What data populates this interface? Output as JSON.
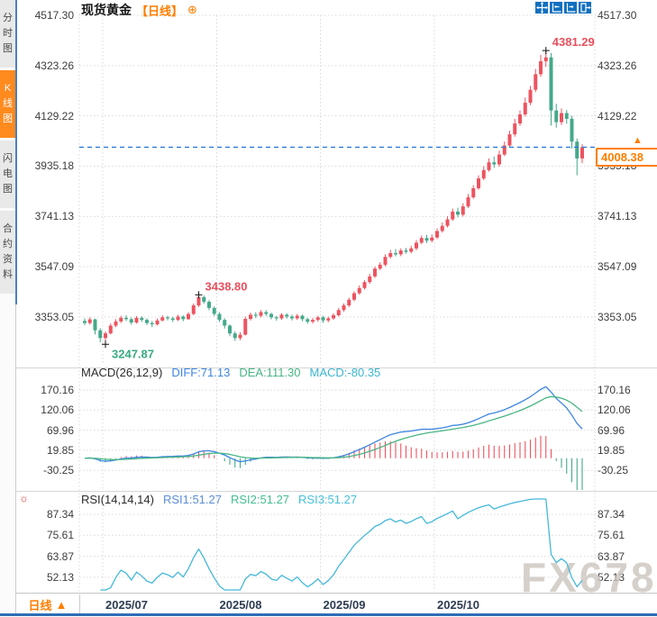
{
  "watermark": "FX678",
  "sidebar": {
    "tabs": [
      {
        "label": "分时图",
        "active": false
      },
      {
        "label": "K线图",
        "active": true
      },
      {
        "label": "闪电图",
        "active": false
      },
      {
        "label": "合约资料",
        "active": false
      }
    ]
  },
  "header": {
    "title": "现货黄金",
    "period_tag": "【日线】",
    "add_icon": "⊕"
  },
  "toolbar": {
    "icons": [
      "move-icon",
      "fit-x-axis-icon",
      "fit-y-axis-icon",
      "exit-icon"
    ]
  },
  "price_panel": {
    "axis_labels": [
      "4517.30",
      "4323.26",
      "4129.22",
      "3935.18",
      "3741.13",
      "3547.09",
      "3353.05"
    ],
    "last_price_text": "4008.38",
    "arrow": "▲"
  },
  "macd_panel": {
    "title": "MACD(26,12,9)",
    "diff_label": "DIFF:71.13",
    "dea_label": "DEA:111.30",
    "macd_label": "MACD:-80.35",
    "axis_labels": [
      "170.16",
      "120.06",
      "69.96",
      "19.85",
      "-30.25"
    ]
  },
  "rsi_panel": {
    "title": "RSI(14,14,14)",
    "rsi1_label": "RSI1:51.27",
    "rsi2_label": "RSI2:51.27",
    "rsi3_label": "RSI3:51.27",
    "settings_icon": "☼",
    "axis_labels": [
      "87.34",
      "75.61",
      "63.87",
      "52.13"
    ]
  },
  "bottom_bar": {
    "period_label": "日线",
    "arrow": "▲",
    "month_labels": [
      "2025/07",
      "2025/08",
      "2025/09",
      "2025/10"
    ]
  },
  "colors": {
    "up": "#ec5460",
    "down": "#44a98b",
    "accent_orange": "#ff7e00",
    "diff_blue": "#3e86e0",
    "dea_green": "#48b584",
    "rsi_cyan": "#45b8da",
    "dashed_line": "#2f7ed8",
    "annotation_high": "#e8505e",
    "annotation_low": "#3aa981",
    "grid": "#d9d9d9"
  },
  "chart_data": {
    "type": "candlestick",
    "title": "现货黄金 日线",
    "price_axis": {
      "ticks": [
        4517.3,
        4323.26,
        4129.22,
        3935.18,
        3741.13,
        3547.09,
        3353.05
      ]
    },
    "x_axis": {
      "month_labels": [
        "2025/07",
        "2025/08",
        "2025/09",
        "2025/10"
      ],
      "month_start_indices": [
        4,
        26,
        46,
        68
      ]
    },
    "last_price": 4008.38,
    "annotations": [
      {
        "index": 4,
        "value": 3247.87,
        "text": "3247.87",
        "kind": "low"
      },
      {
        "index": 22,
        "value": 3438.8,
        "text": "3438.80",
        "kind": "high"
      },
      {
        "index": 89,
        "value": 4381.29,
        "text": "4381.29",
        "kind": "high"
      }
    ],
    "macd": {
      "params": [
        26,
        12,
        9
      ],
      "display": {
        "diff": 71.13,
        "dea": 111.3,
        "macd": -80.35
      },
      "ticks": [
        170.16,
        120.06,
        69.96,
        19.85,
        -30.25
      ]
    },
    "rsi": {
      "params": [
        14,
        14,
        14
      ],
      "display": {
        "rsi1": 51.27,
        "rsi2": 51.27,
        "rsi3": 51.27
      },
      "ticks": [
        87.34,
        75.61,
        63.87,
        52.13
      ]
    },
    "candles": [
      [
        3338,
        3348,
        3322,
        3330
      ],
      [
        3330,
        3352,
        3324,
        3344
      ],
      [
        3344,
        3347,
        3286,
        3302
      ],
      [
        3302,
        3310,
        3256,
        3272
      ],
      [
        3272,
        3298,
        3247.87,
        3290
      ],
      [
        3290,
        3328,
        3286,
        3320
      ],
      [
        3320,
        3345,
        3314,
        3336
      ],
      [
        3336,
        3358,
        3330,
        3350
      ],
      [
        3350,
        3360,
        3338,
        3345
      ],
      [
        3345,
        3352,
        3324,
        3332
      ],
      [
        3332,
        3357,
        3328,
        3350
      ],
      [
        3350,
        3356,
        3334,
        3342
      ],
      [
        3342,
        3348,
        3322,
        3330
      ],
      [
        3330,
        3338,
        3314,
        3325
      ],
      [
        3325,
        3347,
        3320,
        3340
      ],
      [
        3340,
        3360,
        3336,
        3352
      ],
      [
        3352,
        3358,
        3340,
        3348
      ],
      [
        3348,
        3355,
        3334,
        3342
      ],
      [
        3342,
        3362,
        3338,
        3355
      ],
      [
        3355,
        3360,
        3337,
        3345
      ],
      [
        3345,
        3372,
        3342,
        3365
      ],
      [
        3365,
        3405,
        3360,
        3398
      ],
      [
        3398,
        3438.8,
        3392,
        3430
      ],
      [
        3430,
        3436,
        3404,
        3412
      ],
      [
        3412,
        3418,
        3379,
        3388
      ],
      [
        3388,
        3395,
        3357,
        3365
      ],
      [
        3365,
        3372,
        3334,
        3342
      ],
      [
        3342,
        3348,
        3309,
        3320
      ],
      [
        3320,
        3325,
        3279,
        3290
      ],
      [
        3290,
        3298,
        3261,
        3272
      ],
      [
        3272,
        3295,
        3264,
        3285
      ],
      [
        3285,
        3355,
        3282,
        3346
      ],
      [
        3346,
        3370,
        3340,
        3362
      ],
      [
        3362,
        3372,
        3349,
        3358
      ],
      [
        3358,
        3380,
        3352,
        3372
      ],
      [
        3372,
        3380,
        3357,
        3365
      ],
      [
        3365,
        3370,
        3344,
        3352
      ],
      [
        3352,
        3358,
        3339,
        3348
      ],
      [
        3348,
        3368,
        3342,
        3362
      ],
      [
        3362,
        3368,
        3347,
        3355
      ],
      [
        3355,
        3362,
        3340,
        3348
      ],
      [
        3348,
        3365,
        3342,
        3358
      ],
      [
        3358,
        3362,
        3337,
        3345
      ],
      [
        3345,
        3350,
        3327,
        3335
      ],
      [
        3335,
        3350,
        3328,
        3342
      ],
      [
        3342,
        3358,
        3335,
        3352
      ],
      [
        3352,
        3358,
        3331,
        3340
      ],
      [
        3340,
        3355,
        3333,
        3348
      ],
      [
        3348,
        3368,
        3342,
        3360
      ],
      [
        3360,
        3388,
        3355,
        3380
      ],
      [
        3380,
        3405,
        3374,
        3398
      ],
      [
        3398,
        3428,
        3392,
        3420
      ],
      [
        3420,
        3452,
        3414,
        3445
      ],
      [
        3445,
        3475,
        3439,
        3465
      ],
      [
        3465,
        3495,
        3459,
        3488
      ],
      [
        3488,
        3520,
        3481,
        3510
      ],
      [
        3510,
        3548,
        3504,
        3540
      ],
      [
        3540,
        3565,
        3534,
        3555
      ],
      [
        3555,
        3595,
        3549,
        3585
      ],
      [
        3585,
        3612,
        3579,
        3600
      ],
      [
        3600,
        3615,
        3587,
        3595
      ],
      [
        3595,
        3618,
        3588,
        3610
      ],
      [
        3610,
        3620,
        3597,
        3605
      ],
      [
        3605,
        3628,
        3599,
        3618
      ],
      [
        3618,
        3650,
        3611,
        3640
      ],
      [
        3640,
        3668,
        3634,
        3658
      ],
      [
        3658,
        3670,
        3639,
        3648
      ],
      [
        3648,
        3672,
        3641,
        3660
      ],
      [
        3660,
        3695,
        3654,
        3685
      ],
      [
        3685,
        3718,
        3679,
        3705
      ],
      [
        3705,
        3742,
        3699,
        3730
      ],
      [
        3730,
        3772,
        3724,
        3760
      ],
      [
        3760,
        3775,
        3737,
        3748
      ],
      [
        3748,
        3792,
        3741,
        3780
      ],
      [
        3780,
        3828,
        3774,
        3815
      ],
      [
        3815,
        3862,
        3809,
        3850
      ],
      [
        3850,
        3900,
        3844,
        3888
      ],
      [
        3888,
        3935,
        3881,
        3920
      ],
      [
        3920,
        3965,
        3914,
        3950
      ],
      [
        3950,
        3972,
        3929,
        3942
      ],
      [
        3942,
        3995,
        3934,
        3980
      ],
      [
        3980,
        4030,
        3974,
        4015
      ],
      [
        4015,
        4072,
        4007,
        4058
      ],
      [
        4058,
        4118,
        4049,
        4100
      ],
      [
        4100,
        4150,
        4091,
        4135
      ],
      [
        4135,
        4200,
        4127,
        4180
      ],
      [
        4180,
        4245,
        4171,
        4230
      ],
      [
        4230,
        4310,
        4221,
        4290
      ],
      [
        4290,
        4365,
        4281,
        4340
      ],
      [
        4340,
        4381.29,
        4318,
        4355
      ],
      [
        4355,
        4372,
        4092,
        4150
      ],
      [
        4150,
        4176,
        4084,
        4105
      ],
      [
        4105,
        4158,
        4094,
        4140
      ],
      [
        4140,
        4152,
        4099,
        4118
      ],
      [
        4118,
        4130,
        4003,
        4030
      ],
      [
        4030,
        4042,
        3900,
        3965
      ],
      [
        3965,
        4020,
        3947,
        4008.38
      ]
    ]
  }
}
